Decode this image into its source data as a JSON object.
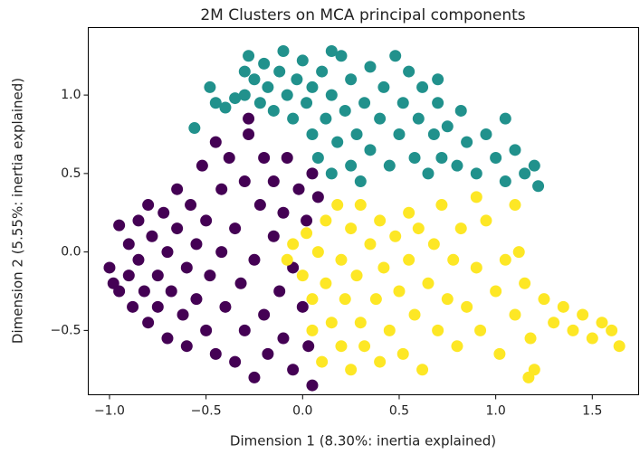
{
  "chart_data": {
    "type": "scatter",
    "title": "2M Clusters on MCA principal components",
    "x_label": "Dimension 1 (8.30%: inertia explained)",
    "y_label": "Dimension 2 (5.55%: inertia explained)",
    "xlim": [
      -1.11,
      1.74
    ],
    "ylim": [
      -0.91,
      1.43
    ],
    "xticks": [
      {
        "value": -1.0,
        "label": "−1.0"
      },
      {
        "value": -0.5,
        "label": "−0.5"
      },
      {
        "value": 0.0,
        "label": "0.0"
      },
      0.5,
      {
        "value": 1.0,
        "label": "1.0"
      },
      1.5
    ],
    "yticks": [
      {
        "value": -0.5,
        "label": "−0.5"
      },
      {
        "value": 0.0,
        "label": "0.0"
      },
      0.5,
      {
        "value": 1.0,
        "label": "1.0"
      }
    ],
    "series": [
      {
        "color": "#440154",
        "x": [
          -1.0,
          -0.98,
          -0.95,
          -0.95,
          -0.9,
          -0.9,
          -0.88,
          -0.85,
          -0.85,
          -0.82,
          -0.8,
          -0.8,
          -0.78,
          -0.75,
          -0.75,
          -0.72,
          -0.7,
          -0.7,
          -0.68,
          -0.65,
          -0.65,
          -0.62,
          -0.6,
          -0.6,
          -0.58,
          -0.55,
          -0.55,
          -0.52,
          -0.5,
          -0.5,
          -0.48,
          -0.45,
          -0.45,
          -0.42,
          -0.42,
          -0.4,
          -0.38,
          -0.35,
          -0.35,
          -0.32,
          -0.3,
          -0.3,
          -0.28,
          -0.25,
          -0.25,
          -0.22,
          -0.2,
          -0.2,
          -0.18,
          -0.15,
          -0.15,
          -0.12,
          -0.1,
          -0.1,
          -0.08,
          -0.05,
          -0.05,
          -0.02,
          0.0,
          0.02,
          0.03,
          0.05,
          0.08,
          -0.28,
          0.05
        ],
        "values": [
          -0.1,
          -0.2,
          0.17,
          -0.25,
          0.05,
          -0.15,
          -0.35,
          0.2,
          -0.05,
          -0.25,
          0.3,
          -0.45,
          0.1,
          -0.15,
          -0.35,
          0.25,
          0.0,
          -0.55,
          -0.25,
          0.4,
          0.15,
          -0.4,
          -0.1,
          -0.6,
          0.3,
          0.05,
          -0.3,
          0.55,
          -0.5,
          0.2,
          -0.15,
          0.7,
          -0.65,
          0.4,
          0.0,
          -0.35,
          0.6,
          -0.7,
          0.15,
          -0.2,
          0.45,
          -0.5,
          0.75,
          -0.05,
          -0.8,
          0.3,
          -0.4,
          0.6,
          -0.65,
          0.1,
          0.45,
          -0.25,
          -0.55,
          0.25,
          0.6,
          -0.1,
          -0.75,
          0.4,
          -0.35,
          0.2,
          -0.6,
          0.5,
          0.35,
          0.85,
          -0.85
        ]
      },
      {
        "color": "#21918c",
        "x": [
          -0.48,
          -0.45,
          -0.4,
          -0.35,
          -0.3,
          -0.3,
          -0.28,
          -0.25,
          -0.22,
          -0.2,
          -0.18,
          -0.15,
          -0.12,
          -0.1,
          -0.08,
          -0.05,
          -0.03,
          0.0,
          0.02,
          0.05,
          0.05,
          0.08,
          0.1,
          0.12,
          0.15,
          0.15,
          0.18,
          0.2,
          0.22,
          0.25,
          0.25,
          0.28,
          0.3,
          0.32,
          0.35,
          0.35,
          0.4,
          0.42,
          0.45,
          0.48,
          0.5,
          0.52,
          0.55,
          0.58,
          0.6,
          0.62,
          0.65,
          0.68,
          0.7,
          0.72,
          0.75,
          0.8,
          0.82,
          0.85,
          0.9,
          0.95,
          1.0,
          1.05,
          1.1,
          1.15,
          1.2,
          1.22,
          1.05,
          -0.56,
          0.15,
          0.7
        ],
        "values": [
          1.05,
          0.95,
          0.92,
          0.98,
          1.0,
          1.15,
          1.25,
          1.1,
          0.95,
          1.2,
          1.05,
          0.9,
          1.15,
          1.28,
          1.0,
          0.85,
          1.1,
          1.22,
          0.95,
          0.75,
          1.05,
          0.6,
          1.15,
          0.85,
          0.5,
          1.0,
          0.7,
          1.25,
          0.9,
          0.55,
          1.1,
          0.75,
          0.45,
          0.95,
          1.18,
          0.65,
          0.85,
          1.05,
          0.55,
          1.25,
          0.75,
          0.95,
          1.15,
          0.6,
          0.85,
          1.05,
          0.5,
          0.75,
          0.95,
          0.6,
          0.8,
          0.55,
          0.9,
          0.7,
          0.5,
          0.75,
          0.6,
          0.45,
          0.65,
          0.5,
          0.55,
          0.42,
          0.85,
          0.79,
          1.28,
          1.1
        ]
      },
      {
        "color": "#fde725",
        "x": [
          -0.08,
          -0.05,
          0.0,
          0.02,
          0.05,
          0.05,
          0.08,
          0.1,
          0.12,
          0.12,
          0.15,
          0.18,
          0.2,
          0.2,
          0.22,
          0.25,
          0.25,
          0.28,
          0.3,
          0.3,
          0.32,
          0.35,
          0.38,
          0.4,
          0.4,
          0.42,
          0.45,
          0.48,
          0.5,
          0.52,
          0.55,
          0.55,
          0.58,
          0.6,
          0.62,
          0.65,
          0.68,
          0.7,
          0.72,
          0.75,
          0.78,
          0.8,
          0.82,
          0.85,
          0.9,
          0.92,
          0.95,
          1.0,
          1.02,
          1.05,
          1.1,
          1.12,
          1.15,
          1.18,
          1.2,
          1.25,
          1.3,
          1.35,
          1.4,
          1.45,
          1.5,
          1.55,
          1.6,
          1.64,
          1.1,
          1.17,
          0.9
        ],
        "values": [
          -0.05,
          0.05,
          -0.15,
          0.12,
          -0.3,
          -0.5,
          0.0,
          -0.7,
          0.2,
          -0.2,
          -0.45,
          0.3,
          -0.05,
          -0.6,
          -0.3,
          0.15,
          -0.75,
          -0.15,
          0.3,
          -0.45,
          -0.6,
          0.05,
          -0.3,
          0.2,
          -0.7,
          -0.1,
          -0.5,
          0.1,
          -0.25,
          -0.65,
          0.25,
          -0.05,
          -0.4,
          0.15,
          -0.75,
          -0.2,
          0.05,
          -0.5,
          0.3,
          -0.3,
          -0.05,
          -0.6,
          0.15,
          -0.35,
          -0.1,
          -0.5,
          0.2,
          -0.25,
          -0.65,
          -0.05,
          -0.4,
          0.0,
          -0.2,
          -0.55,
          -0.75,
          -0.3,
          -0.45,
          -0.35,
          -0.5,
          -0.4,
          -0.55,
          -0.45,
          -0.5,
          -0.6,
          0.3,
          -0.8,
          0.35
        ]
      }
    ]
  }
}
